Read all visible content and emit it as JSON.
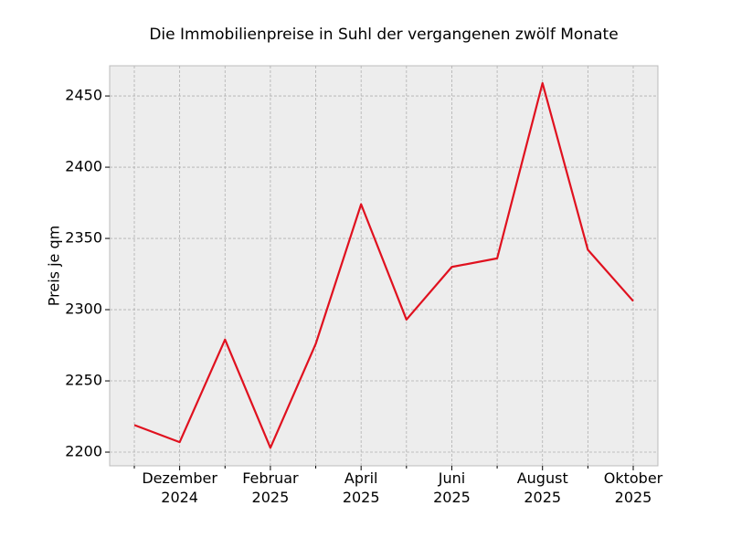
{
  "chart_data": {
    "type": "line",
    "title": "Die Immobilienpreise in Suhl der vergangenen zwölf Monate",
    "y_label": "Preis je qm",
    "categories": [
      null,
      "Dezember\n2024",
      null,
      "Februar\n2025",
      null,
      "April\n2025",
      null,
      "Juni\n2025",
      null,
      "August\n2025",
      null,
      "Oktober\n2025"
    ],
    "series": [
      {
        "name": "Preis je qm",
        "color": "#e0111f",
        "values": [
          2219,
          2207,
          2279,
          2203,
          2276,
          2374,
          2293,
          2330,
          2336,
          2459,
          2342,
          2306
        ]
      }
    ],
    "ylim": [
      2190.4,
      2471.2
    ],
    "yticks": [
      2200,
      2250,
      2300,
      2350,
      2400,
      2450
    ],
    "grid": true
  }
}
